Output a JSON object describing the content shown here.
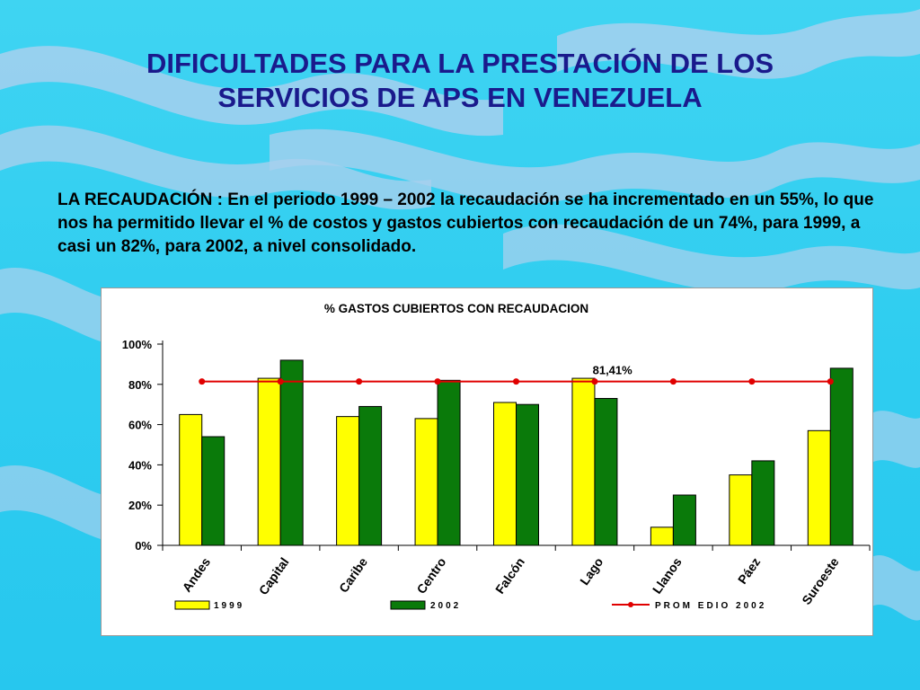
{
  "slide": {
    "title_line1": "DIFICULTADES PARA LA PRESTACIÓN DE LOS",
    "title_line2": "SERVICIOS DE APS EN VENEZUELA",
    "body": "LA RECAUDACIÓN : En el periodo 1999 – 2002 la recaudación se ha incrementado en un 55%, lo que nos ha permitido llevar el % de costos y gastos cubiertos con recaudación de un 74%, para 1999, a casi un 82%, para 2002,  a nivel consolidado."
  },
  "chart_data": {
    "type": "bar",
    "title": "% GASTOS CUBIERTOS CON RECAUDACION",
    "categories": [
      "Andes",
      "Capital",
      "Caribe",
      "Centro",
      "Falcón",
      "Lago",
      "Llanos",
      "Páez",
      "Suroeste"
    ],
    "series": [
      {
        "name": "1999",
        "color": "#ffff00",
        "values": [
          65,
          83,
          64,
          63,
          71,
          83,
          9,
          35,
          57
        ]
      },
      {
        "name": "2002",
        "color": "#0a7a0a",
        "values": [
          54,
          92,
          69,
          82,
          70,
          73,
          25,
          42,
          88
        ]
      }
    ],
    "line": {
      "name": "PROM EDIO  2002",
      "color": "#e00000",
      "value": 81.41,
      "label": "81,41%"
    },
    "y_ticks": [
      "0%",
      "20%",
      "40%",
      "60%",
      "80%",
      "100%"
    ],
    "ylim": [
      0,
      100
    ],
    "legend_position": "bottom",
    "grid": false
  }
}
